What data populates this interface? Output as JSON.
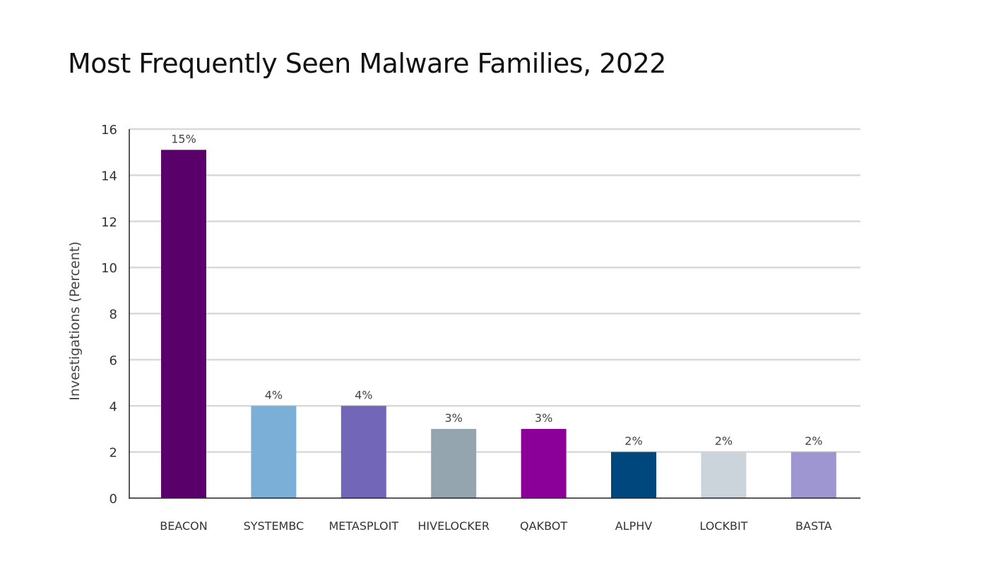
{
  "chart_data": {
    "type": "bar",
    "title": "Most Frequently Seen Malware Families, 2022",
    "xlabel": "",
    "ylabel": "Investigations (Percent)",
    "ylim": [
      0,
      16
    ],
    "yticks": [
      0,
      2,
      4,
      6,
      8,
      10,
      12,
      14,
      16
    ],
    "grid": true,
    "categories": [
      "BEACON",
      "SYSTEMBC",
      "METASPLOIT",
      "HIVELOCKER",
      "QAKBOT",
      "ALPHV",
      "LOCKBIT",
      "BASTA"
    ],
    "values": [
      15.1,
      4,
      4,
      3,
      3,
      2,
      2,
      2
    ],
    "data_labels": [
      "15%",
      "4%",
      "4%",
      "3%",
      "3%",
      "2%",
      "2%",
      "2%"
    ],
    "colors": [
      "#59006b",
      "#7bafd8",
      "#7266b8",
      "#94a5b0",
      "#8a0099",
      "#00477d",
      "#cbd4da",
      "#9d96d1"
    ]
  }
}
